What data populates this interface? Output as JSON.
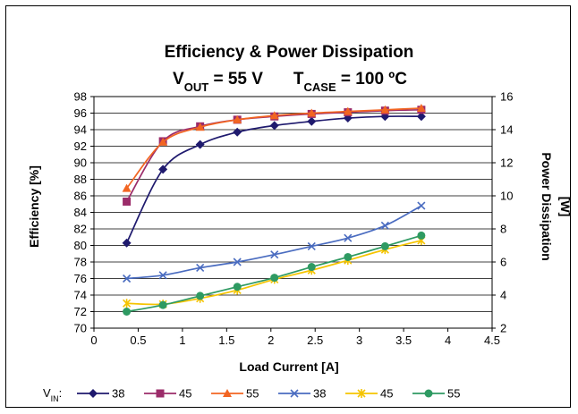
{
  "chart_data": {
    "type": "line",
    "title": "Efficiency & Power Dissipation",
    "subtitle": {
      "vout_label": "V",
      "vout_sub": "OUT",
      "vout_value": " = 55 V",
      "tcase_label": "T",
      "tcase_sub": "CASE",
      "tcase_value": " = 100 ºC"
    },
    "xlabel": "Load Current [A]",
    "ylabel": "Efficiency [%]",
    "y2label_line1": "Power Dissipation",
    "y2label_line2": "[W]",
    "xlim": [
      0,
      4.5
    ],
    "xticks": [
      "0",
      "0.5",
      "1",
      "1.5",
      "2",
      "2.5",
      "3",
      "3.5",
      "4",
      "4.5"
    ],
    "ylim": [
      70,
      98
    ],
    "yticks": [
      "70",
      "72",
      "74",
      "76",
      "78",
      "80",
      "82",
      "84",
      "86",
      "88",
      "90",
      "92",
      "94",
      "96",
      "98"
    ],
    "y2lim": [
      2,
      16
    ],
    "y2ticks": [
      "2",
      "4",
      "6",
      "8",
      "10",
      "12",
      "14",
      "16"
    ],
    "grid": true,
    "legend": {
      "position": "bottom",
      "prefix_main": "V",
      "prefix_sub": "IN",
      "prefix_suffix": ":"
    },
    "series": [
      {
        "name": "38",
        "axis": "left",
        "color": "#1f1a6e",
        "marker": "diamond",
        "x": [
          0.37,
          0.78,
          1.2,
          1.62,
          2.04,
          2.46,
          2.87,
          3.29,
          3.7
        ],
        "y": [
          80.3,
          89.2,
          92.2,
          93.7,
          94.5,
          95.0,
          95.4,
          95.6,
          95.6
        ]
      },
      {
        "name": "45",
        "axis": "left",
        "color": "#9b2c6a",
        "marker": "square",
        "x": [
          0.37,
          0.78,
          1.2,
          1.62,
          2.04,
          2.46,
          2.87,
          3.29,
          3.7
        ],
        "y": [
          85.3,
          92.6,
          94.4,
          95.2,
          95.6,
          95.9,
          96.1,
          96.3,
          96.4
        ]
      },
      {
        "name": "55",
        "axis": "left",
        "color": "#f26522",
        "marker": "triangle",
        "x": [
          0.37,
          0.78,
          1.2,
          1.62,
          2.04,
          2.46,
          2.87,
          3.29,
          3.7
        ],
        "y": [
          86.9,
          92.5,
          94.3,
          95.2,
          95.7,
          96.0,
          96.2,
          96.4,
          96.6
        ]
      },
      {
        "name": "38",
        "axis": "right",
        "color": "#4a6cc0",
        "marker": "x",
        "x": [
          0.37,
          0.78,
          1.2,
          1.62,
          2.04,
          2.46,
          2.87,
          3.29,
          3.7
        ],
        "y": [
          5.0,
          5.2,
          5.65,
          6.0,
          6.45,
          6.95,
          7.45,
          8.2,
          9.4
        ]
      },
      {
        "name": "45",
        "axis": "right",
        "color": "#f5c400",
        "marker": "star",
        "x": [
          0.37,
          0.78,
          1.2,
          1.62,
          2.04,
          2.46,
          2.87,
          3.29,
          3.7
        ],
        "y": [
          3.5,
          3.45,
          3.8,
          4.3,
          4.95,
          5.5,
          6.1,
          6.75,
          7.3
        ]
      },
      {
        "name": "55",
        "axis": "right",
        "color": "#2e9a62",
        "marker": "circle",
        "x": [
          0.37,
          0.78,
          1.2,
          1.62,
          2.04,
          2.46,
          2.87,
          3.29,
          3.7
        ],
        "y": [
          3.0,
          3.4,
          3.95,
          4.5,
          5.05,
          5.7,
          6.3,
          6.95,
          7.6
        ]
      }
    ]
  }
}
